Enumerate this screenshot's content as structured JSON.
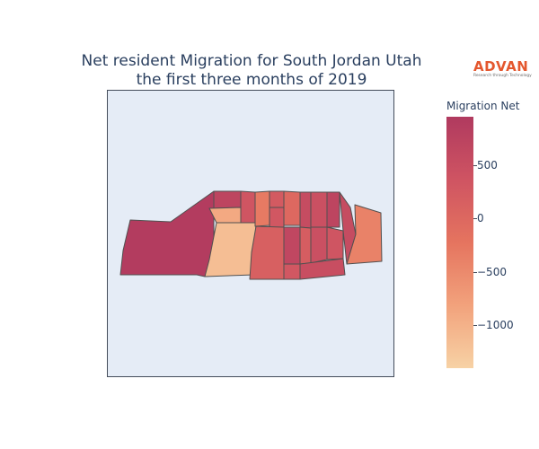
{
  "title": {
    "line1": "Net resident Migration for South Jordan Utah",
    "line2": "the first three months of 2019"
  },
  "logo": {
    "word": "ADVAN",
    "tagline": "Research through Technology",
    "color": "#e4572e"
  },
  "map": {
    "background": "#e5ecf6",
    "border_color": "#444c5a",
    "region_stroke": "#505050",
    "regions": [
      {
        "id": "west-large",
        "migration_net": 900
      },
      {
        "id": "north-west-a",
        "migration_net": 700
      },
      {
        "id": "light-sw-block",
        "migration_net": -1150
      },
      {
        "id": "notch-left",
        "migration_net": -900
      },
      {
        "id": "notch-right",
        "migration_net": 350
      },
      {
        "id": "north-col-1",
        "migration_net": -300
      },
      {
        "id": "north-col-2",
        "migration_net": 250
      },
      {
        "id": "north-col-3",
        "migration_net": 0
      },
      {
        "id": "north-col-4",
        "migration_net": 550
      },
      {
        "id": "north-col-5",
        "migration_net": 450
      },
      {
        "id": "north-col-6",
        "migration_net": 700
      },
      {
        "id": "north-col-7",
        "migration_net": 300
      },
      {
        "id": "mid-large",
        "migration_net": 150
      },
      {
        "id": "mid-col-1",
        "migration_net": 650
      },
      {
        "id": "mid-col-2",
        "migration_net": 200
      },
      {
        "id": "mid-col-3",
        "migration_net": 450
      },
      {
        "id": "mid-col-4",
        "migration_net": 350
      },
      {
        "id": "south-strip-1",
        "migration_net": 300
      },
      {
        "id": "south-strip-2",
        "migration_net": 500
      },
      {
        "id": "east-mid",
        "migration_net": 550
      },
      {
        "id": "east-far",
        "migration_net": -400
      }
    ]
  },
  "colorbar": {
    "title": "Migration Net",
    "min": -1400,
    "max": 950,
    "colors": [
      "#f7d2a5",
      "#f2a27c",
      "#e5745f",
      "#cf5462",
      "#b03a5f"
    ],
    "ticks": [
      {
        "value": 500,
        "label": "500"
      },
      {
        "value": 0,
        "label": "0"
      },
      {
        "value": -500,
        "label": "−500"
      },
      {
        "value": -1000,
        "label": "−1000"
      }
    ]
  }
}
